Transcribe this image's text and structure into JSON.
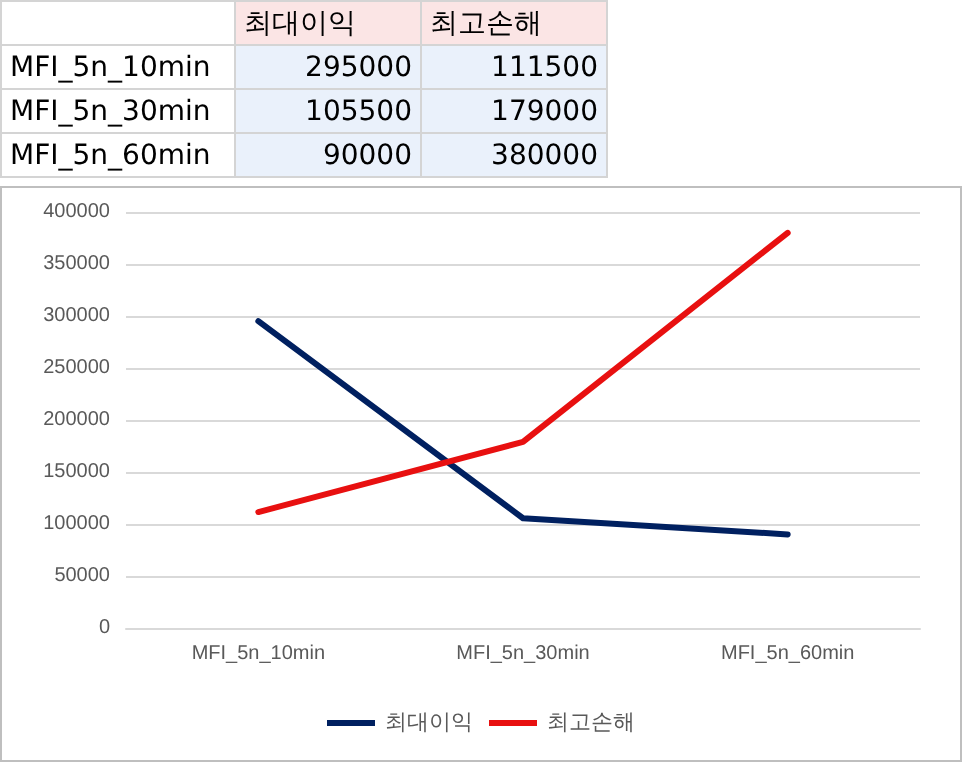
{
  "chart_data": {
    "type": "line",
    "categories": [
      "MFI_5n_10min",
      "MFI_5n_30min",
      "MFI_5n_60min"
    ],
    "series": [
      {
        "name": "최대이익",
        "color": "#002060",
        "values": [
          295000,
          105500,
          90000
        ]
      },
      {
        "name": "최고손해",
        "color": "#e81010",
        "values": [
          111500,
          179000,
          380000
        ]
      }
    ],
    "ylim": [
      0,
      400000
    ],
    "yticks": [
      0,
      50000,
      100000,
      150000,
      200000,
      250000,
      300000,
      350000,
      400000
    ],
    "grid": "y",
    "legend": "bottom",
    "marker": "none",
    "line_style": "solid",
    "annotations": [
      "295000",
      "111500",
      "105500",
      "179000",
      "90000",
      "380000"
    ]
  }
}
